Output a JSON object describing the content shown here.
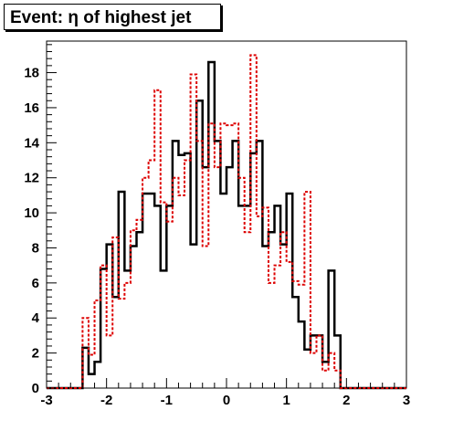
{
  "chart_data": {
    "type": "histogram",
    "title": "Event: η of highest jet",
    "xlabel": "",
    "ylabel": "",
    "xlim": [
      -3,
      3
    ],
    "ylim": [
      0,
      19.8
    ],
    "grid": false,
    "legend": "none",
    "x_ticks": [
      -3,
      -2,
      -1,
      0,
      1,
      2,
      3
    ],
    "y_ticks": [
      0,
      2,
      4,
      6,
      8,
      10,
      12,
      14,
      16,
      18
    ],
    "bin_edges_start": -3,
    "bin_width": 0.1,
    "series": [
      {
        "style": "solid",
        "color": "#000000",
        "values": [
          0,
          0,
          0,
          0,
          0,
          0,
          2.3,
          0.8,
          1.5,
          6.8,
          8.2,
          5.2,
          11.2,
          6.7,
          8.1,
          8.9,
          11.1,
          11.1,
          10.4,
          6.7,
          10.4,
          14.1,
          13.3,
          13.4,
          8.2,
          16.4,
          12.6,
          18.6,
          14.1,
          11.1,
          12.6,
          14.1,
          10.4,
          10.4,
          13.4,
          14.1,
          8.1,
          8.9,
          10.4,
          8.2,
          11.1,
          5.2,
          3.8,
          2.2,
          3,
          3,
          1.5,
          6.7,
          3,
          0,
          0,
          0,
          0,
          0,
          0,
          0,
          0,
          0,
          0,
          0
        ]
      },
      {
        "style": "dashed",
        "color": "#dd0000",
        "values": [
          0,
          0,
          0,
          0,
          0,
          0,
          4,
          1.9,
          5,
          7,
          3,
          8.6,
          5.1,
          6,
          9,
          9.6,
          12,
          13,
          17,
          10.6,
          9.5,
          12,
          11,
          13,
          17.9,
          14.1,
          8.1,
          15.1,
          12.6,
          15.1,
          15,
          15.1,
          12,
          8.9,
          19,
          9.8,
          10.3,
          6,
          7,
          8.9,
          7.2,
          6.1,
          5.9,
          11.2,
          2,
          3,
          1,
          2,
          1,
          0,
          0,
          0,
          0,
          0,
          0,
          0,
          0,
          0,
          0,
          0
        ]
      }
    ]
  }
}
